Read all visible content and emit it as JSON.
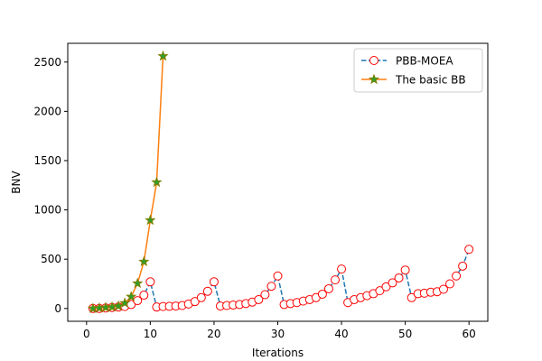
{
  "chart_data": {
    "type": "line",
    "xlabel": "Iterations",
    "ylabel": "BNV",
    "xlim": [
      -2.95,
      62.95
    ],
    "ylim": [
      -130,
      2690
    ],
    "xticks": [
      0,
      10,
      20,
      30,
      40,
      50,
      60
    ],
    "yticks": [
      0,
      500,
      1000,
      1500,
      2000,
      2500
    ],
    "grid": false,
    "legend_position": "top-right",
    "series": [
      {
        "name": "PBB-MOEA",
        "color": "#1f77b4",
        "marker_edge": "#ff0000",
        "marker_face": "#ffffff",
        "line_style": "dashed",
        "marker": "circle",
        "x": [
          1,
          2,
          3,
          4,
          5,
          6,
          7,
          8,
          9,
          10,
          11,
          12,
          13,
          14,
          15,
          16,
          17,
          18,
          19,
          20,
          21,
          22,
          23,
          24,
          25,
          26,
          27,
          28,
          29,
          30,
          31,
          32,
          33,
          34,
          35,
          36,
          37,
          38,
          39,
          40,
          41,
          42,
          43,
          44,
          45,
          46,
          47,
          48,
          49,
          50,
          51,
          52,
          53,
          54,
          55,
          56,
          57,
          58,
          59,
          60
        ],
        "values": [
          0,
          0,
          5,
          10,
          15,
          20,
          40,
          80,
          135,
          270,
          15,
          20,
          22,
          25,
          30,
          45,
          70,
          110,
          175,
          270,
          25,
          30,
          35,
          40,
          50,
          65,
          90,
          140,
          225,
          330,
          40,
          50,
          60,
          75,
          90,
          110,
          145,
          200,
          290,
          400,
          60,
          90,
          110,
          130,
          150,
          180,
          220,
          260,
          310,
          390,
          110,
          150,
          155,
          165,
          170,
          195,
          250,
          330,
          430,
          600
        ]
      },
      {
        "name": "The basic BB",
        "color": "#ff7f0e",
        "marker_edge": "#7f7f00",
        "marker_face": "#2ca02c",
        "line_style": "solid",
        "marker": "star",
        "x": [
          1,
          2,
          3,
          4,
          5,
          6,
          7,
          8,
          9,
          10,
          11,
          12
        ],
        "values": [
          0,
          5,
          10,
          15,
          25,
          55,
          120,
          255,
          475,
          895,
          1280,
          2560
        ]
      }
    ]
  }
}
